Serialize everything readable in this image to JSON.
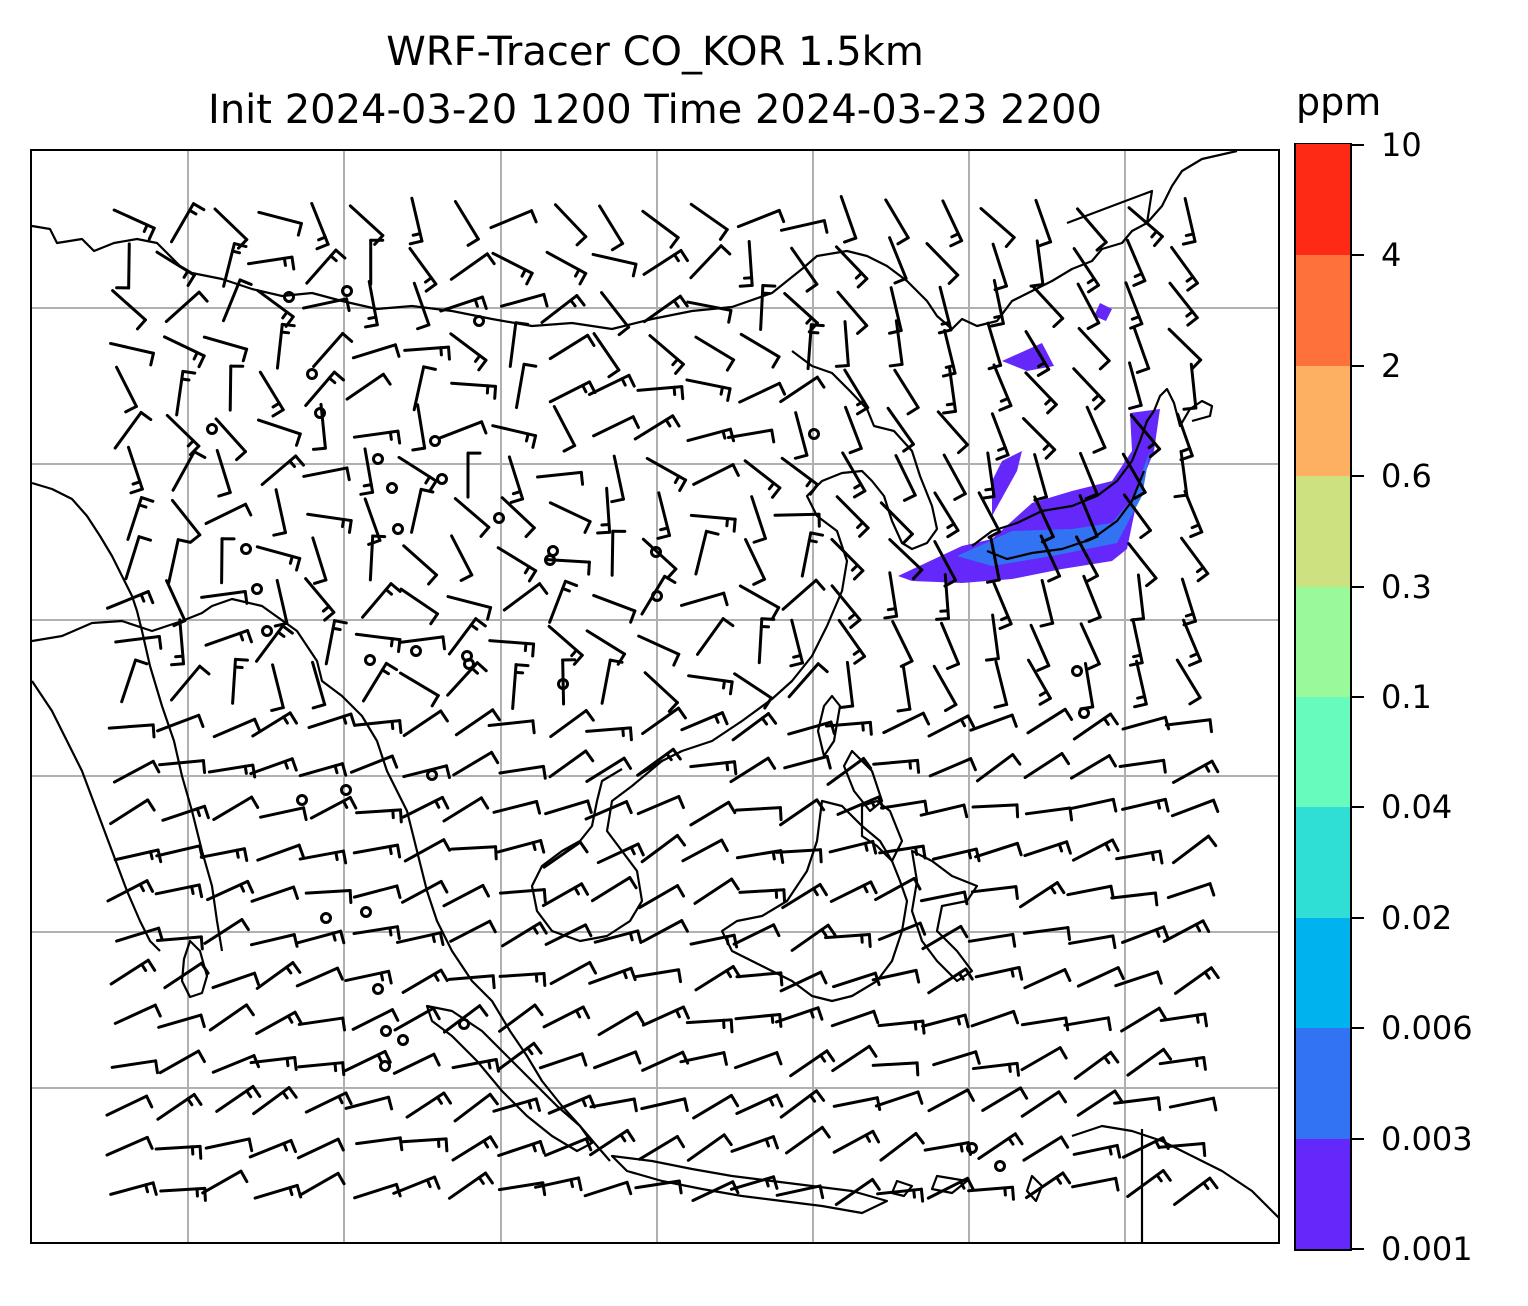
{
  "title": {
    "line1": "WRF-Tracer CO_KOR 1.5km",
    "line2": "Init 2024-03-20 1200 Time 2024-03-23 2200"
  },
  "colorbar": {
    "unit": "ppm",
    "labels": [
      "0.001",
      "0.003",
      "0.006",
      "0.02",
      "0.04",
      "0.1",
      "0.3",
      "0.6",
      "2",
      "4",
      "10"
    ],
    "colors": [
      "#6528fa",
      "#3273f3",
      "#00b2ee",
      "#2fdfd6",
      "#67fbbe",
      "#98fa98",
      "#cde181",
      "#fdb062",
      "#ff713a",
      "#ff2a16"
    ]
  },
  "map": {
    "gridlines": "on",
    "plume_color": "#6528fa",
    "plume_core_color": "#3273f3",
    "line_color": "#000000",
    "grid_color": "#b0b0b0"
  }
}
